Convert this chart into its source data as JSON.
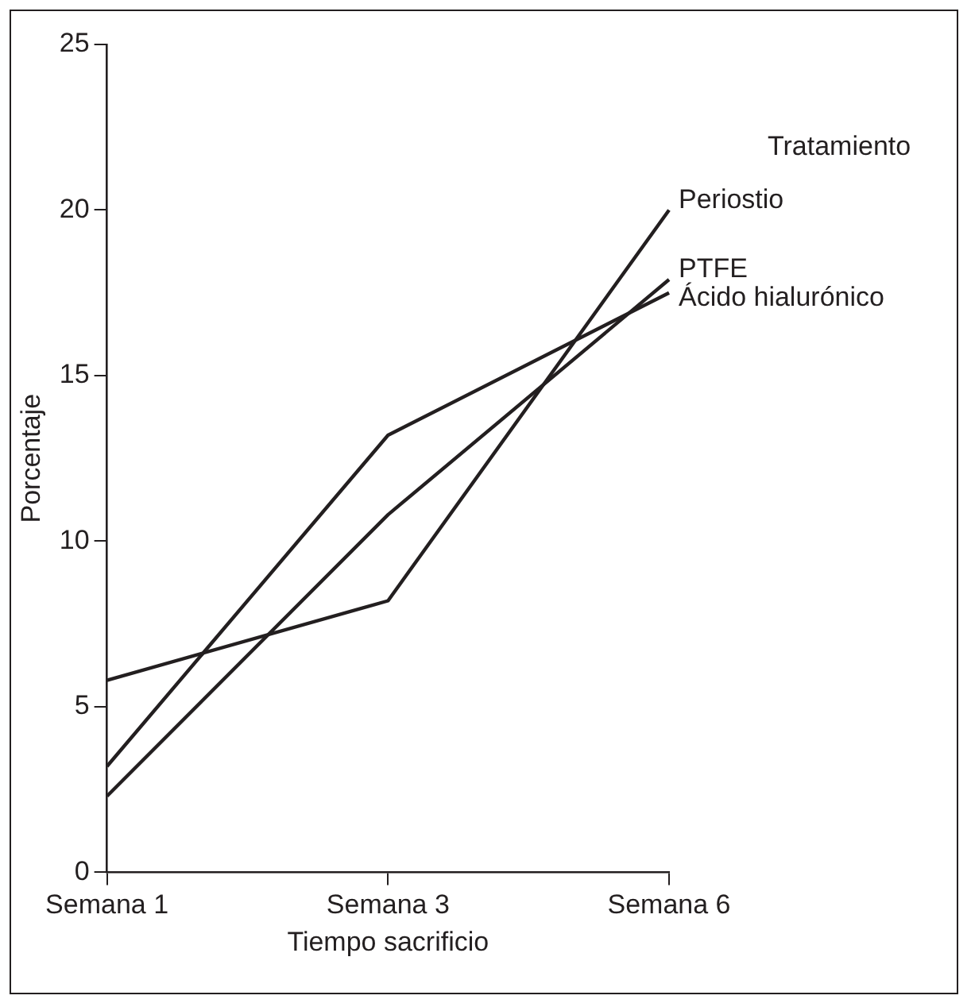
{
  "chart_data": {
    "type": "line",
    "xlabel": "Tiempo sacrificio",
    "ylabel": "Porcentaje",
    "legend_title": "Tratamiento",
    "categories": [
      "Semana 1",
      "Semana 3",
      "Semana 6"
    ],
    "series": [
      {
        "name": "Periostio",
        "color": "#231f20",
        "values": [
          5.8,
          8.2,
          20.0
        ]
      },
      {
        "name": "PTFE",
        "color": "#231f20",
        "values": [
          2.3,
          10.8,
          17.9
        ]
      },
      {
        "name": "Ácido hialurónico",
        "color": "#231f20",
        "values": [
          3.2,
          13.2,
          17.5
        ]
      }
    ],
    "ylim": [
      0,
      25
    ],
    "yticks": [
      0,
      5,
      10,
      15,
      20,
      25
    ],
    "grid": false,
    "legend": false,
    "marker": "none",
    "line_style": "solid"
  }
}
